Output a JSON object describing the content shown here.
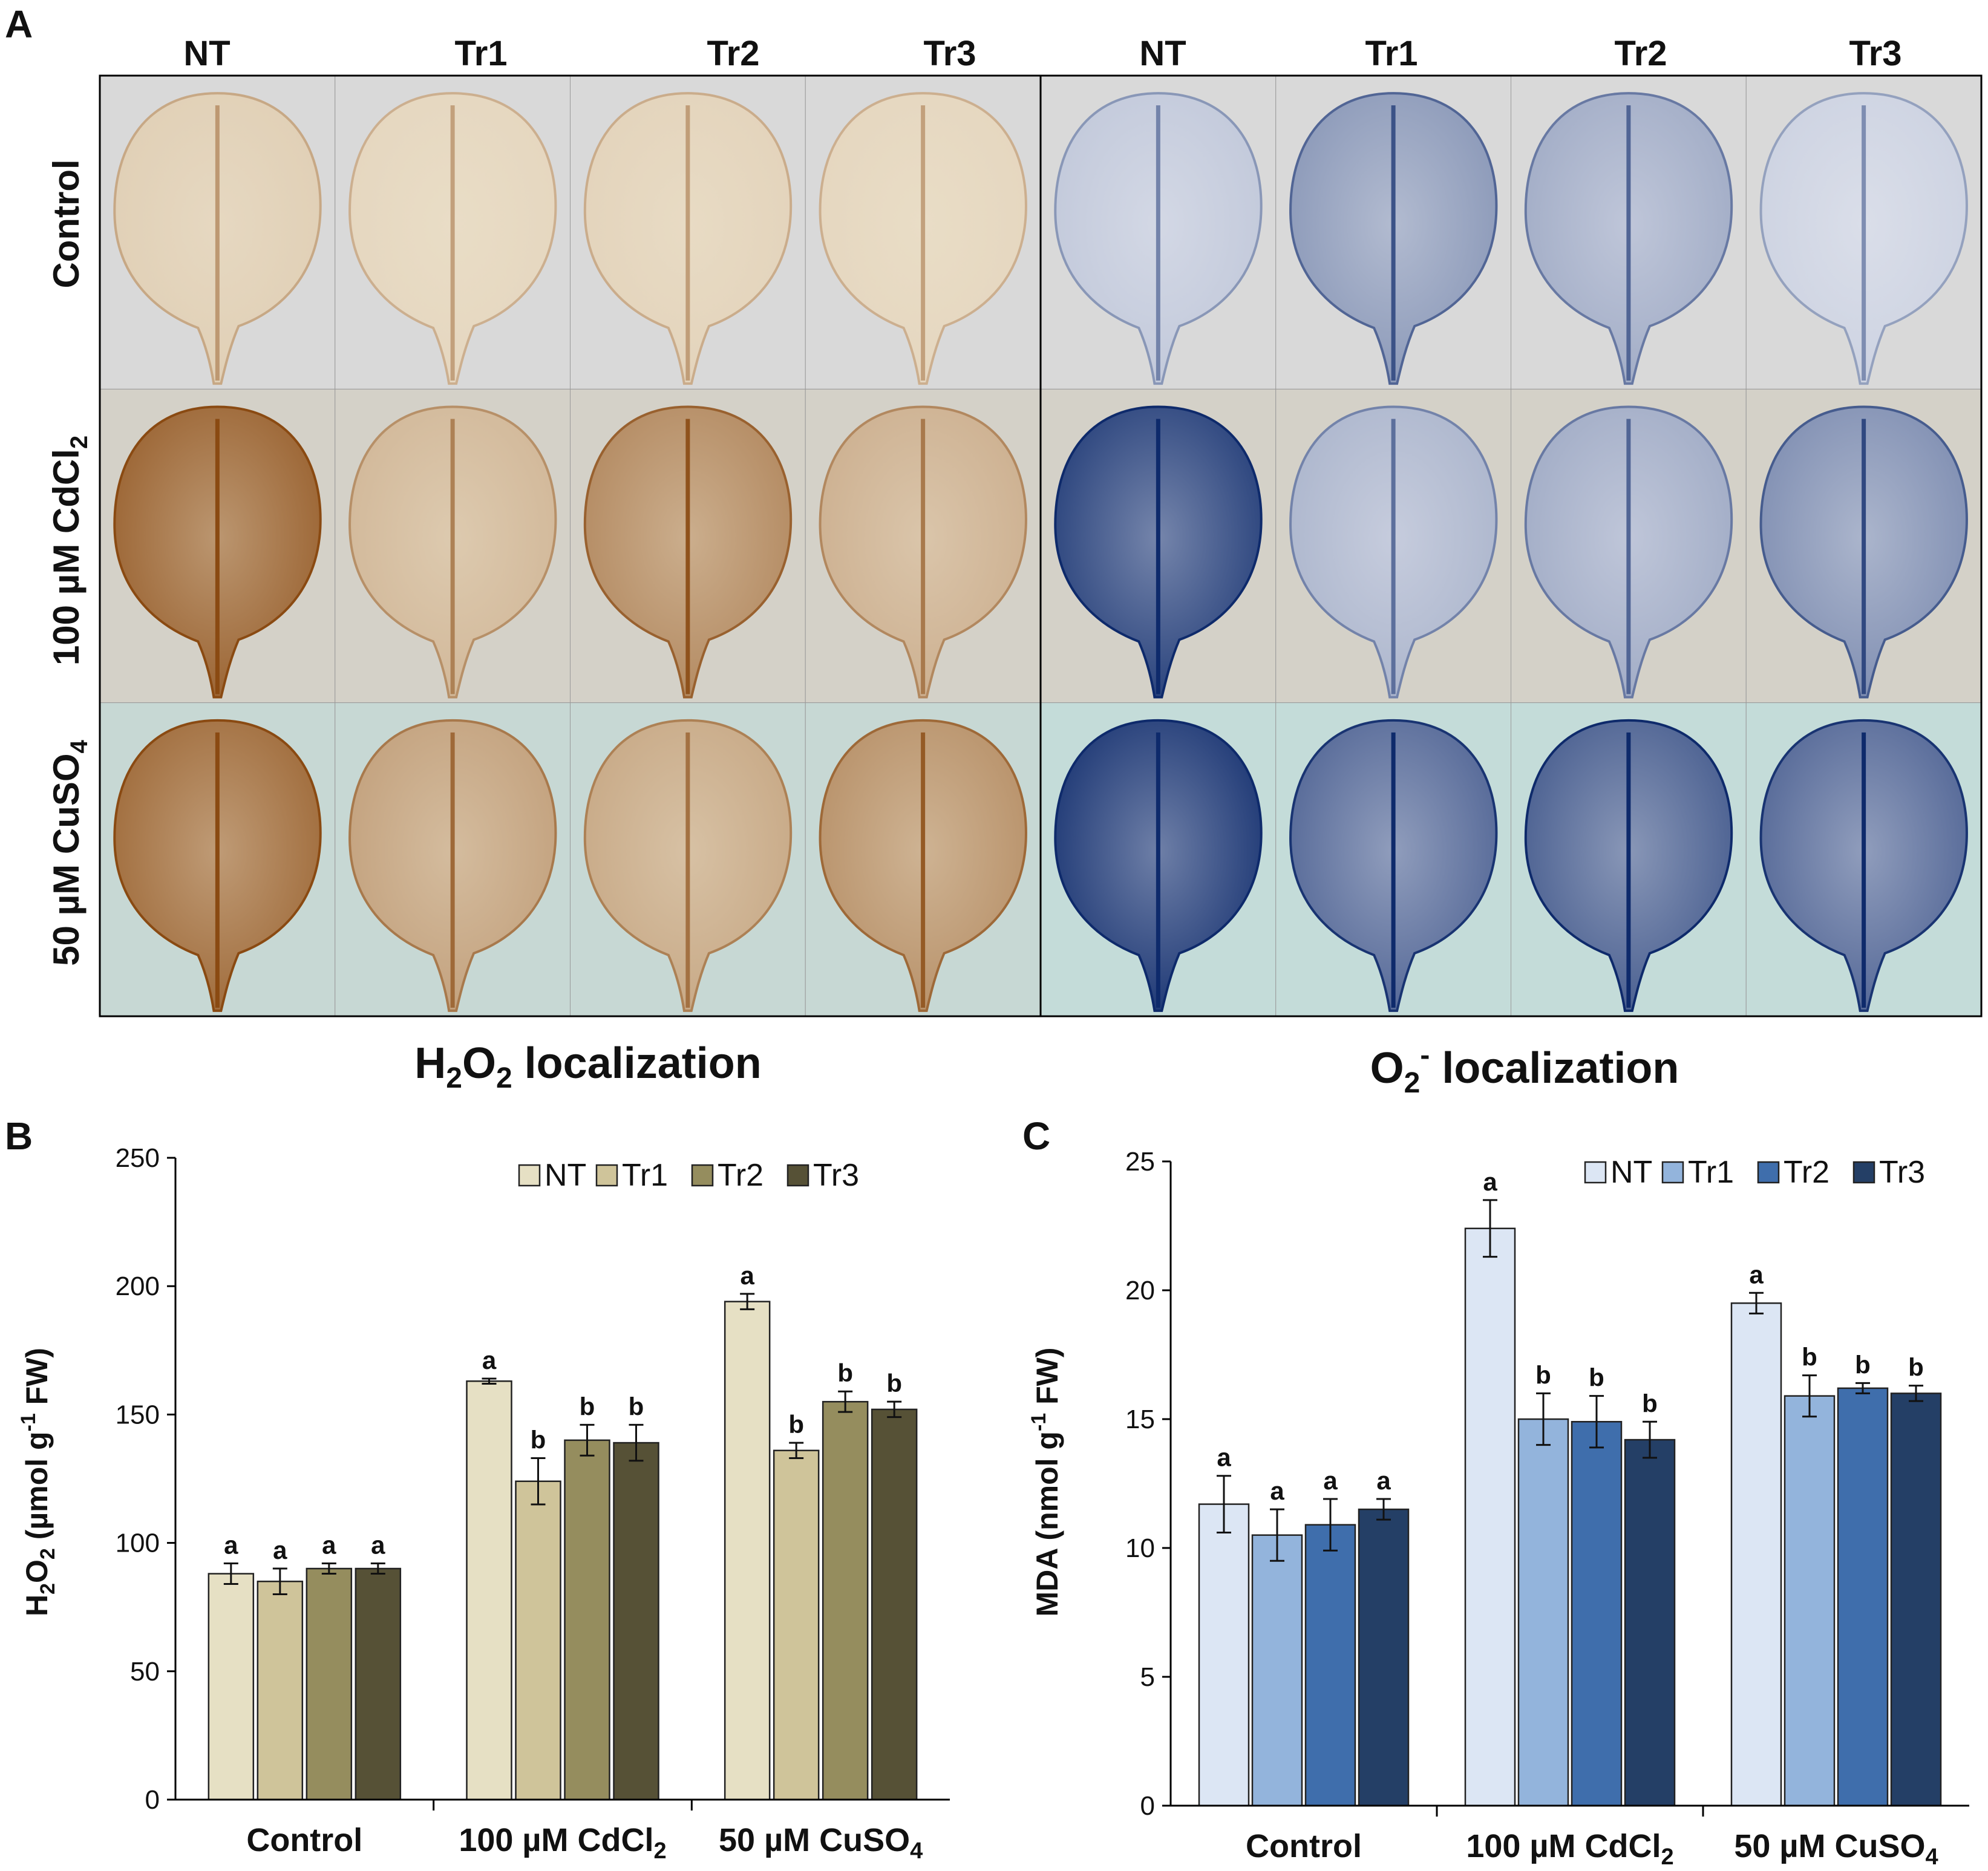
{
  "panel_a": {
    "panel_letter": "A",
    "columns": [
      "NT",
      "Tr1",
      "Tr2",
      "Tr3"
    ],
    "rows": [
      {
        "label": "Control",
        "sub": ""
      },
      {
        "label": "100 µM CdCl",
        "sub": "2"
      },
      {
        "label": "50 µM CuSO",
        "sub": "4"
      }
    ],
    "h2o2_caption": {
      "p1": "H",
      "s1": "2",
      "p2": "O",
      "s2": "2",
      "p3": " localization"
    },
    "o2_caption": {
      "p1": "O",
      "s1": "2",
      "sup": "-",
      "p2": " localization"
    },
    "h2o2_stain_intensity": [
      [
        0.15,
        0.1,
        0.12,
        0.1
      ],
      [
        0.85,
        0.3,
        0.6,
        0.35
      ],
      [
        0.8,
        0.45,
        0.4,
        0.55
      ]
    ],
    "o2_stain_intensity": [
      [
        0.2,
        0.45,
        0.35,
        0.15
      ],
      [
        0.9,
        0.3,
        0.35,
        0.5
      ],
      [
        0.95,
        0.7,
        0.75,
        0.7
      ]
    ],
    "colors": {
      "h2o2_light": "#efe6d2",
      "h2o2_dark": "#8a4a12",
      "o2_light": "#eef0f6",
      "o2_dark": "#0e2a6b",
      "bg_row1": "#d9d9d9",
      "bg_row2": "#d4d1c8",
      "bg_row3": "#c7d8d4",
      "bg_o2_row3": "#c4dcd9"
    }
  },
  "chart_data": [
    {
      "panel_letter": "B",
      "type": "bar",
      "categories": [
        "Control",
        "100 µM CdCl",
        "50 µM CuSO"
      ],
      "category_subscripts": [
        "",
        "2",
        "4"
      ],
      "series": [
        {
          "name": "NT",
          "values": [
            88,
            163,
            194
          ],
          "errors": [
            4,
            1,
            3
          ],
          "letters": [
            "a",
            "a",
            "a"
          ],
          "color": "#e6e0c4"
        },
        {
          "name": "Tr1",
          "values": [
            85,
            124,
            136
          ],
          "errors": [
            5,
            9,
            3
          ],
          "letters": [
            "a",
            "b",
            "b"
          ],
          "color": "#cfc49a"
        },
        {
          "name": "Tr2",
          "values": [
            90,
            140,
            155
          ],
          "errors": [
            2,
            6,
            4
          ],
          "letters": [
            "a",
            "b",
            "b"
          ],
          "color": "#958d5e"
        },
        {
          "name": "Tr3",
          "values": [
            90,
            139,
            152
          ],
          "errors": [
            2,
            7,
            3
          ],
          "letters": [
            "a",
            "b",
            "b"
          ],
          "color": "#565136"
        }
      ],
      "ylim": [
        0,
        250
      ],
      "yticks": [
        0,
        50,
        100,
        150,
        200,
        250
      ],
      "ylabel": {
        "p1": "H",
        "s1": "2",
        "p2": "O",
        "s2": "2",
        "p3": " (µmol g",
        "sup": "-1",
        "p4": " FW)"
      },
      "xlabel": "",
      "legend": "top-right"
    },
    {
      "panel_letter": "C",
      "type": "bar",
      "categories": [
        "Control",
        "100 µM CdCl",
        "50 µM CuSO"
      ],
      "category_subscripts": [
        "",
        "2",
        "4"
      ],
      "series": [
        {
          "name": "NT",
          "values": [
            11.7,
            22.4,
            19.5
          ],
          "errors": [
            1.1,
            1.1,
            0.4
          ],
          "letters": [
            "a",
            "a",
            "a"
          ],
          "color": "#dce6f4"
        },
        {
          "name": "Tr1",
          "values": [
            10.5,
            15.0,
            15.9
          ],
          "errors": [
            1.0,
            1.0,
            0.8
          ],
          "letters": [
            "a",
            "b",
            "b"
          ],
          "color": "#93b4dc"
        },
        {
          "name": "Tr2",
          "values": [
            10.9,
            14.9,
            16.2
          ],
          "errors": [
            1.0,
            1.0,
            0.2
          ],
          "letters": [
            "a",
            "b",
            "b"
          ],
          "color": "#3f6eac"
        },
        {
          "name": "Tr3",
          "values": [
            11.5,
            14.2,
            16.0
          ],
          "errors": [
            0.4,
            0.7,
            0.3
          ],
          "letters": [
            "a",
            "b",
            "b"
          ],
          "color": "#243f66"
        }
      ],
      "ylim": [
        0,
        25
      ],
      "yticks": [
        0,
        5,
        10,
        15,
        20,
        25
      ],
      "ylabel": {
        "p1": "MDA (nmol g",
        "sup": "-1",
        "p2": " FW)"
      },
      "xlabel": "",
      "legend": "top-right"
    }
  ]
}
